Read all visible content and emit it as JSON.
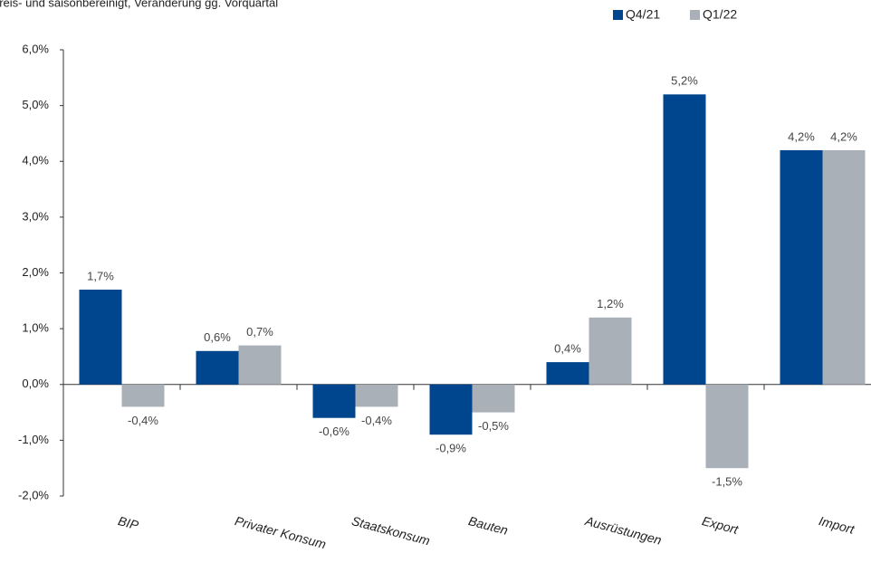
{
  "chart_data": {
    "type": "bar",
    "subtitle": "preis- und saisonbereinigt, Veränderung gg. Vorquartal",
    "categories": [
      "BIP",
      "Privater Konsum",
      "Staatskonsum",
      "Bauten",
      "Ausrüstungen",
      "Export",
      "Import"
    ],
    "series": [
      {
        "name": "Q4/21",
        "color": "#00468f",
        "values": [
          1.7,
          0.6,
          -0.6,
          -0.9,
          0.4,
          5.2,
          4.2
        ],
        "value_labels": [
          "1,7%",
          "0,6%",
          "-0,6%",
          "-0,9%",
          "0,4%",
          "5,2%",
          "4,2%"
        ]
      },
      {
        "name": "Q1/22",
        "color": "#a9b0b7",
        "values": [
          -0.4,
          0.7,
          -0.4,
          -0.5,
          1.2,
          -1.5,
          4.2
        ],
        "value_labels": [
          "-0,4%",
          "0,7%",
          "-0,4%",
          "-0,5%",
          "1,2%",
          "-1,5%",
          "4,2%"
        ]
      }
    ],
    "ylim": [
      -2,
      6
    ],
    "yticks": [
      {
        "value": -2,
        "label": "-2,0%"
      },
      {
        "value": -1,
        "label": "-1,0%"
      },
      {
        "value": 0,
        "label": "0,0%"
      },
      {
        "value": 1,
        "label": "1,0%"
      },
      {
        "value": 2,
        "label": "2,0%"
      },
      {
        "value": 3,
        "label": "3,0%"
      },
      {
        "value": 4,
        "label": "4,0%"
      },
      {
        "value": 5,
        "label": "5,0%"
      },
      {
        "value": 6,
        "label": "6,0%"
      }
    ],
    "grid": false,
    "legend": "top-right"
  }
}
